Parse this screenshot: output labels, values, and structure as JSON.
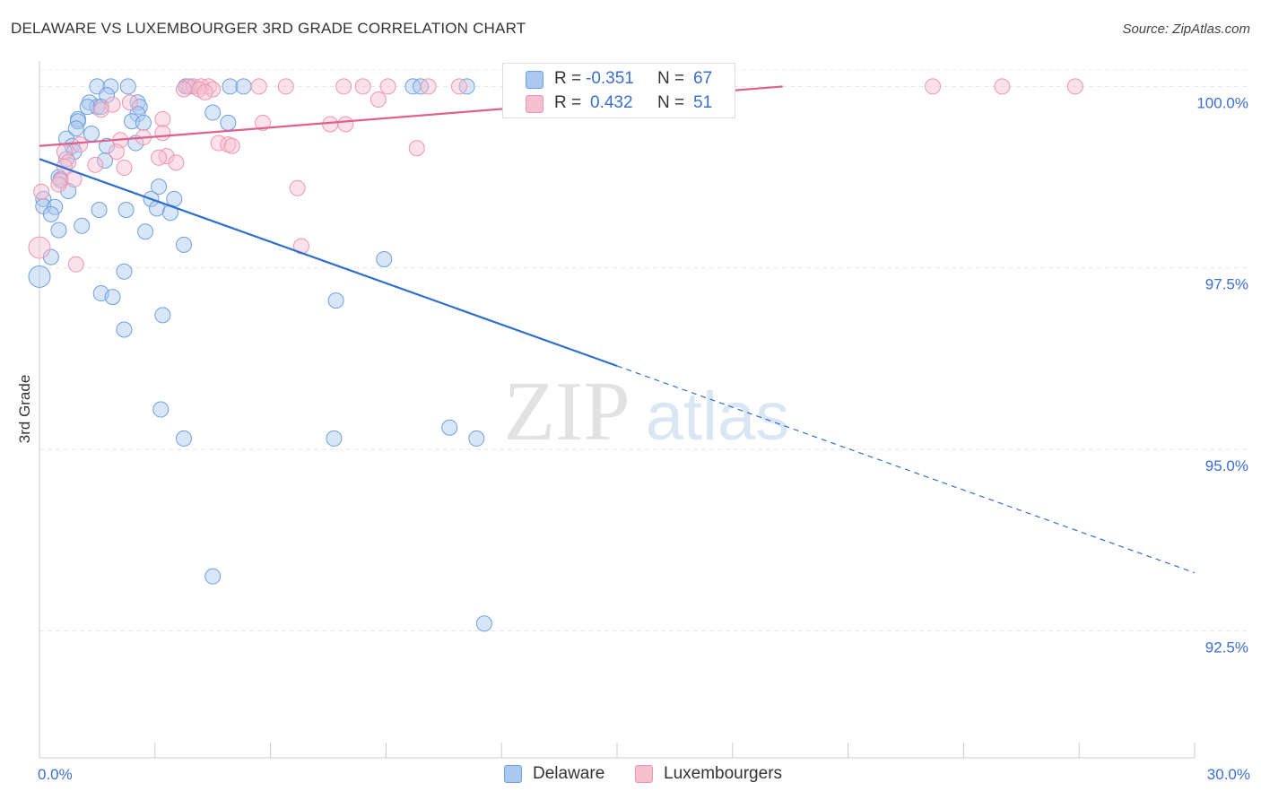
{
  "title": "DELAWARE VS LUXEMBOURGER 3RD GRADE CORRELATION CHART",
  "source": "Source: ZipAtlas.com",
  "watermark": {
    "zip": "ZIP",
    "atlas": "atlas"
  },
  "colors": {
    "blue_fill": "#aac8f0",
    "blue_stroke": "#6fa0df",
    "blue_line": "#2f6fd0",
    "pink_fill": "#f6bfd0",
    "pink_stroke": "#ee95b1",
    "pink_line": "#e0608c",
    "tick_label": "#3a6fd0",
    "grid": "#e6e6e6"
  },
  "stats": {
    "delaware": {
      "r_label": "R =",
      "r_value": "-0.351",
      "n_label": "N =",
      "n_value": "67"
    },
    "luxembourgers": {
      "r_label": "R =",
      "r_value": "0.432",
      "n_label": "N =",
      "n_value": "51"
    }
  },
  "legend": {
    "delaware": "Delaware",
    "luxembourgers": "Luxembourgers"
  },
  "chart_data": {
    "type": "scatter",
    "title": "DELAWARE VS LUXEMBOURGER 3RD GRADE CORRELATION CHART",
    "xlabel": "",
    "ylabel": "3rd Grade",
    "xlim": [
      0,
      30
    ],
    "ylim": [
      90.75,
      100.45
    ],
    "x_tick_labels": [
      {
        "value": 0,
        "label": "0.0%"
      },
      {
        "value": 30,
        "label": "30.0%"
      }
    ],
    "y_ticks": [
      {
        "value": 100,
        "label": "100.0%"
      },
      {
        "value": 97.5,
        "label": "97.5%"
      },
      {
        "value": 95,
        "label": "95.0%"
      },
      {
        "value": 92.5,
        "label": "92.5%"
      }
    ],
    "grid": true,
    "legend_position": "bottom",
    "series": [
      {
        "name": "Delaware",
        "color": "blue",
        "points": [
          [
            1.5,
            100.0
          ],
          [
            1.85,
            100.0
          ],
          [
            2.3,
            100.0
          ],
          [
            3.8,
            100.0
          ],
          [
            3.9,
            100.0
          ],
          [
            4.95,
            100.0
          ],
          [
            5.3,
            100.0
          ],
          [
            9.7,
            100.0
          ],
          [
            9.9,
            100.0
          ],
          [
            11.1,
            100.0
          ],
          [
            1.75,
            99.88
          ],
          [
            2.55,
            99.78
          ],
          [
            1.3,
            99.78
          ],
          [
            2.6,
            99.72
          ],
          [
            1.5,
            99.72
          ],
          [
            1.25,
            99.72
          ],
          [
            1.6,
            99.72
          ],
          [
            4.5,
            99.64
          ],
          [
            2.55,
            99.62
          ],
          [
            1.0,
            99.55
          ],
          [
            1.0,
            99.52
          ],
          [
            2.4,
            99.52
          ],
          [
            2.7,
            99.5
          ],
          [
            4.9,
            99.5
          ],
          [
            0.95,
            99.42
          ],
          [
            1.35,
            99.35
          ],
          [
            0.7,
            99.28
          ],
          [
            2.5,
            99.22
          ],
          [
            0.85,
            99.18
          ],
          [
            1.75,
            99.18
          ],
          [
            0.9,
            99.1
          ],
          [
            0.7,
            99.0
          ],
          [
            1.7,
            98.98
          ],
          [
            0.5,
            98.75
          ],
          [
            0.55,
            98.72
          ],
          [
            3.1,
            98.62
          ],
          [
            0.75,
            98.56
          ],
          [
            0.1,
            98.45
          ],
          [
            2.9,
            98.45
          ],
          [
            3.5,
            98.45
          ],
          [
            0.1,
            98.35
          ],
          [
            0.4,
            98.34
          ],
          [
            3.05,
            98.32
          ],
          [
            1.55,
            98.3
          ],
          [
            2.25,
            98.3
          ],
          [
            0.3,
            98.24
          ],
          [
            3.4,
            98.26
          ],
          [
            1.1,
            98.08
          ],
          [
            0.5,
            98.02
          ],
          [
            2.75,
            98.0
          ],
          [
            3.75,
            97.82
          ],
          [
            0.3,
            97.65
          ],
          [
            8.95,
            97.62
          ],
          [
            2.2,
            97.45
          ],
          [
            0.0,
            97.38
          ],
          [
            1.6,
            97.15
          ],
          [
            1.9,
            97.1
          ],
          [
            7.7,
            97.05
          ],
          [
            3.2,
            96.85
          ],
          [
            2.2,
            96.65
          ],
          [
            3.15,
            95.55
          ],
          [
            3.75,
            95.15
          ],
          [
            7.65,
            95.15
          ],
          [
            10.65,
            95.3
          ],
          [
            11.35,
            95.15
          ],
          [
            4.5,
            93.25
          ],
          [
            11.55,
            92.6
          ]
        ],
        "trend": {
          "x0": 0,
          "y0": 99.0,
          "x_solid_end": 15.0,
          "y_solid_end": 96.15,
          "x_dash_end": 30.0,
          "y_dash_end": 93.3
        }
      },
      {
        "name": "Luxembourgers",
        "color": "pink",
        "points": [
          [
            3.85,
            100.0
          ],
          [
            4.0,
            100.0
          ],
          [
            4.2,
            100.0
          ],
          [
            4.4,
            100.0
          ],
          [
            5.7,
            100.0
          ],
          [
            6.4,
            100.0
          ],
          [
            7.9,
            100.0
          ],
          [
            8.4,
            100.0
          ],
          [
            9.05,
            100.0
          ],
          [
            10.1,
            100.0
          ],
          [
            10.9,
            100.0
          ],
          [
            23.2,
            100.0
          ],
          [
            25.0,
            100.0
          ],
          [
            26.9,
            100.0
          ],
          [
            3.75,
            99.96
          ],
          [
            4.15,
            99.96
          ],
          [
            4.5,
            99.96
          ],
          [
            4.3,
            99.92
          ],
          [
            8.8,
            99.82
          ],
          [
            1.9,
            99.75
          ],
          [
            2.35,
            99.78
          ],
          [
            1.6,
            99.68
          ],
          [
            3.2,
            99.55
          ],
          [
            5.8,
            99.5
          ],
          [
            7.55,
            99.48
          ],
          [
            7.95,
            99.48
          ],
          [
            3.2,
            99.36
          ],
          [
            2.7,
            99.3
          ],
          [
            2.1,
            99.26
          ],
          [
            4.65,
            99.22
          ],
          [
            4.9,
            99.2
          ],
          [
            1.05,
            99.2
          ],
          [
            5.0,
            99.18
          ],
          [
            9.8,
            99.15
          ],
          [
            2.0,
            99.1
          ],
          [
            0.65,
            99.1
          ],
          [
            3.3,
            99.04
          ],
          [
            3.1,
            99.02
          ],
          [
            0.75,
            98.96
          ],
          [
            1.45,
            98.92
          ],
          [
            3.55,
            98.95
          ],
          [
            2.2,
            98.88
          ],
          [
            0.55,
            98.7
          ],
          [
            0.9,
            98.72
          ],
          [
            0.5,
            98.65
          ],
          [
            6.7,
            98.6
          ],
          [
            0.05,
            98.55
          ],
          [
            6.8,
            97.8
          ],
          [
            0.0,
            97.78
          ],
          [
            0.95,
            97.55
          ],
          [
            0.65,
            98.9
          ]
        ],
        "trend": {
          "x0": 0,
          "y0": 99.18,
          "x_solid_end": 19.3,
          "y_solid_end": 100.0
        }
      }
    ]
  }
}
